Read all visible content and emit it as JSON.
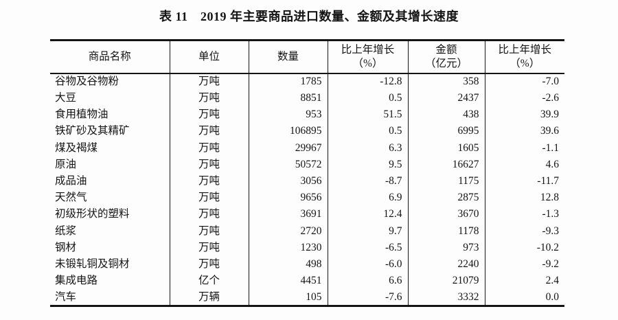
{
  "page": {
    "background": "#fdfdfd",
    "text_color": "#141414",
    "rule_color": "#141414"
  },
  "title": "表 11　2019 年主要商品进口数量、金额及其增长速度",
  "table": {
    "columns": [
      {
        "label": "商品名称",
        "sub": ""
      },
      {
        "label": "单位",
        "sub": ""
      },
      {
        "label": "数量",
        "sub": ""
      },
      {
        "label": "比上年增长",
        "sub": "（%）"
      },
      {
        "label": "金额",
        "sub": "（亿元）"
      },
      {
        "label": "比上年增长",
        "sub": "（%）"
      }
    ],
    "rows": [
      {
        "name": "谷物及谷物粉",
        "unit": "万吨",
        "quantity": "1785",
        "quantity_growth": "-12.8",
        "amount": "358",
        "amount_growth": "-7.0"
      },
      {
        "name": "大豆",
        "unit": "万吨",
        "quantity": "8851",
        "quantity_growth": "0.5",
        "amount": "2437",
        "amount_growth": "-2.6"
      },
      {
        "name": "食用植物油",
        "unit": "万吨",
        "quantity": "953",
        "quantity_growth": "51.5",
        "amount": "438",
        "amount_growth": "39.9"
      },
      {
        "name": "铁矿砂及其精矿",
        "unit": "万吨",
        "quantity": "106895",
        "quantity_growth": "0.5",
        "amount": "6995",
        "amount_growth": "39.6"
      },
      {
        "name": "煤及褐煤",
        "unit": "万吨",
        "quantity": "29967",
        "quantity_growth": "6.3",
        "amount": "1605",
        "amount_growth": "-1.1"
      },
      {
        "name": "原油",
        "unit": "万吨",
        "quantity": "50572",
        "quantity_growth": "9.5",
        "amount": "16627",
        "amount_growth": "4.6"
      },
      {
        "name": "成品油",
        "unit": "万吨",
        "quantity": "3056",
        "quantity_growth": "-8.7",
        "amount": "1175",
        "amount_growth": "-11.7"
      },
      {
        "name": "天然气",
        "unit": "万吨",
        "quantity": "9656",
        "quantity_growth": "6.9",
        "amount": "2875",
        "amount_growth": "12.8"
      },
      {
        "name": "初级形状的塑料",
        "unit": "万吨",
        "quantity": "3691",
        "quantity_growth": "12.4",
        "amount": "3670",
        "amount_growth": "-1.3"
      },
      {
        "name": "纸浆",
        "unit": "万吨",
        "quantity": "2720",
        "quantity_growth": "9.7",
        "amount": "1178",
        "amount_growth": "-9.3"
      },
      {
        "name": "钢材",
        "unit": "万吨",
        "quantity": "1230",
        "quantity_growth": "-6.5",
        "amount": "973",
        "amount_growth": "-10.2"
      },
      {
        "name": "未锻轧铜及铜材",
        "unit": "万吨",
        "quantity": "498",
        "quantity_growth": "-6.0",
        "amount": "2240",
        "amount_growth": "-9.2"
      },
      {
        "name": "集成电路",
        "unit": "亿个",
        "quantity": "4451",
        "quantity_growth": "6.6",
        "amount": "21079",
        "amount_growth": "2.4"
      },
      {
        "name": "汽车",
        "unit": "万辆",
        "quantity": "105",
        "quantity_growth": "-7.6",
        "amount": "3332",
        "amount_growth": "0.0"
      }
    ]
  }
}
